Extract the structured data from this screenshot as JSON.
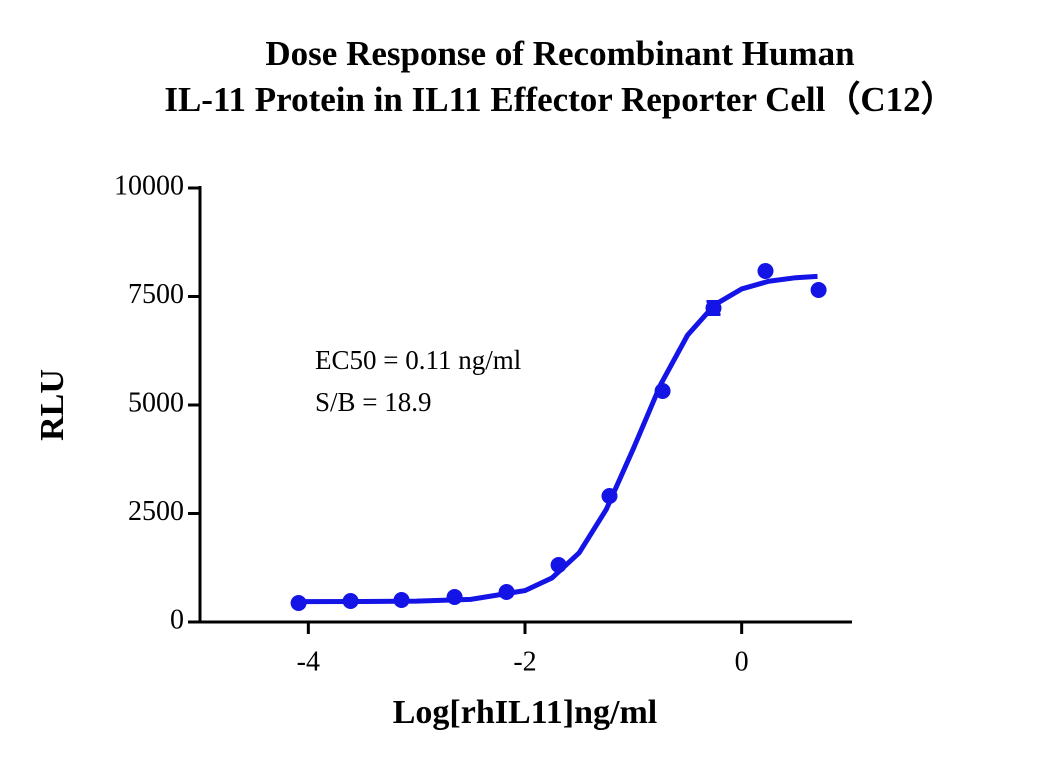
{
  "chart_data": {
    "type": "scatter",
    "title": [
      "Dose Response of Recombinant Human",
      "IL-11 Protein in IL11 Effector Reporter Cell（C12）"
    ],
    "xlabel": "Log[rhIL11]ng/ml",
    "ylabel": "RLU",
    "annotations": [
      "EC50 =  0.11 ng/ml",
      "S/B = 18.9"
    ],
    "x": [
      -4.09,
      -3.61,
      -3.14,
      -2.65,
      -2.17,
      -1.69,
      -1.22,
      -0.73,
      -0.26,
      0.22,
      0.71
    ],
    "values": [
      438,
      484,
      507,
      576,
      691,
      1313,
      2903,
      5323,
      7235,
      8088,
      7650
    ],
    "errors": [
      null,
      null,
      null,
      null,
      null,
      null,
      null,
      null,
      150,
      null,
      null
    ],
    "fit": {
      "x": [
        -4.1,
        -3.5,
        -3,
        -2.5,
        -2,
        -1.75,
        -1.5,
        -1.25,
        -1,
        -0.75,
        -0.5,
        -0.25,
        0,
        0.25,
        0.5,
        0.7
      ],
      "values": [
        470,
        472,
        480,
        522,
        724,
        1017,
        1594,
        2593,
        3993,
        5463,
        6607,
        7307,
        7674,
        7851,
        7933,
        7964
      ]
    },
    "color": "#1414e6",
    "xlim": [
      -5,
      1
    ],
    "ylim": [
      0,
      10000
    ],
    "xticks": [
      -4,
      -2,
      0
    ],
    "yticks": [
      0,
      2500,
      5000,
      7500,
      10000
    ]
  }
}
